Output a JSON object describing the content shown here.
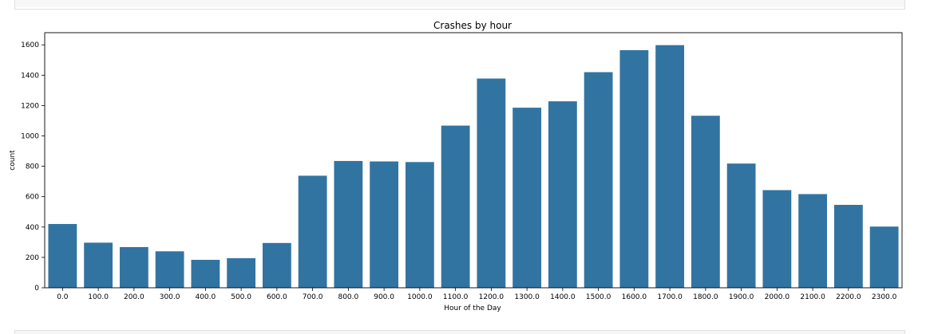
{
  "chart_data": {
    "type": "bar",
    "title": "Crashes by hour",
    "xlabel": "Hour of the Day",
    "ylabel": "count",
    "categories": [
      "0.0",
      "100.0",
      "200.0",
      "300.0",
      "400.0",
      "500.0",
      "600.0",
      "700.0",
      "800.0",
      "900.0",
      "1000.0",
      "1100.0",
      "1200.0",
      "1300.0",
      "1400.0",
      "1500.0",
      "1600.0",
      "1700.0",
      "1800.0",
      "1900.0",
      "2000.0",
      "2100.0",
      "2200.0",
      "2300.0"
    ],
    "values": [
      420,
      297,
      268,
      240,
      184,
      195,
      295,
      738,
      835,
      832,
      828,
      1068,
      1378,
      1186,
      1228,
      1420,
      1565,
      1598,
      1133,
      818,
      643,
      617,
      546,
      403
    ],
    "ylim": [
      0,
      1680
    ],
    "yticks": [
      0,
      200,
      400,
      600,
      800,
      1000,
      1200,
      1400,
      1600
    ],
    "bar_color": "#3274a1",
    "grid": false
  }
}
